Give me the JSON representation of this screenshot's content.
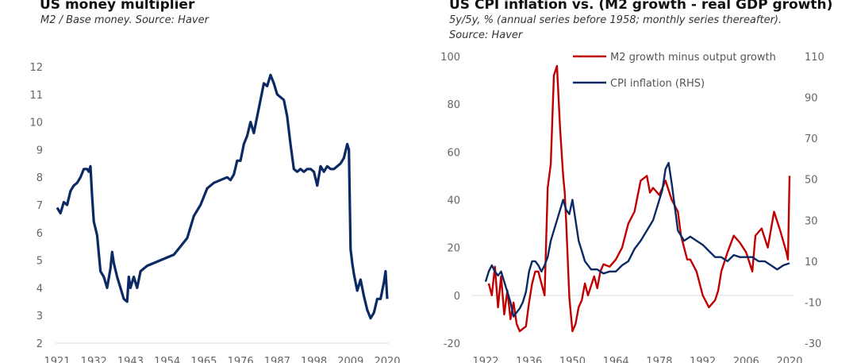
{
  "chart_data": [
    {
      "type": "line",
      "title": "US money multiplier",
      "subtitle": "M2 / Base money. Source: Haver",
      "xlabel": "",
      "ylabel": "",
      "x_ticks": [
        "1921",
        "1932",
        "1943",
        "1954",
        "1965",
        "1976",
        "1987",
        "1998",
        "2009",
        "2020"
      ],
      "y_ticks": [
        "12",
        "11",
        "10",
        "9",
        "8",
        "7",
        "6",
        "5",
        "4",
        "3",
        "2"
      ],
      "xlim": [
        1921,
        2020
      ],
      "ylim": [
        2,
        12
      ],
      "grid": false,
      "series": [
        {
          "name": "US money multiplier",
          "color": "#0b2a64",
          "x": [
            1921,
            1922,
            1923,
            1924,
            1925,
            1926,
            1927,
            1928,
            1929,
            1930,
            1930.5,
            1931,
            1931.5,
            1932,
            1933,
            1934,
            1935,
            1936,
            1937,
            1937.5,
            1938,
            1939,
            1940,
            1941,
            1942,
            1942.5,
            1943,
            1944,
            1945,
            1946,
            1947,
            1948,
            1950,
            1952,
            1954,
            1956,
            1958,
            1960,
            1962,
            1964,
            1965,
            1966,
            1968,
            1970,
            1972,
            1973,
            1974,
            1975,
            1976,
            1977,
            1978,
            1979,
            1980,
            1981,
            1982,
            1983,
            1984,
            1985,
            1986,
            1987,
            1988,
            1989,
            1990,
            1991,
            1992,
            1993,
            1994,
            1995,
            1996,
            1997,
            1998,
            1999,
            2000,
            2001,
            2002,
            2003,
            2004,
            2005,
            2006,
            2007,
            2008,
            2008.5,
            2009,
            2009.5,
            2010,
            2011,
            2012,
            2013,
            2014,
            2015,
            2016,
            2017,
            2018,
            2019,
            2019.5,
            2020
          ],
          "y": [
            6.9,
            6.7,
            7.1,
            7.0,
            7.5,
            7.7,
            7.8,
            8.0,
            8.3,
            8.3,
            8.2,
            8.4,
            7.3,
            6.4,
            5.9,
            4.6,
            4.4,
            4.0,
            4.7,
            5.3,
            4.9,
            4.4,
            4.0,
            3.6,
            3.5,
            4.4,
            4.0,
            4.4,
            4.0,
            4.6,
            4.7,
            4.8,
            4.9,
            5.0,
            5.1,
            5.2,
            5.5,
            5.8,
            6.6,
            7.0,
            7.3,
            7.6,
            7.8,
            7.9,
            8.0,
            7.9,
            8.1,
            8.6,
            8.6,
            9.2,
            9.5,
            10.0,
            9.6,
            10.2,
            10.8,
            11.4,
            11.3,
            11.7,
            11.4,
            11.0,
            10.9,
            10.8,
            10.2,
            9.2,
            8.3,
            8.2,
            8.3,
            8.2,
            8.3,
            8.3,
            8.2,
            7.7,
            8.4,
            8.2,
            8.4,
            8.3,
            8.3,
            8.4,
            8.5,
            8.7,
            9.2,
            9.0,
            5.4,
            4.9,
            4.5,
            3.9,
            4.3,
            3.7,
            3.2,
            2.9,
            3.1,
            3.6,
            3.6,
            4.2,
            4.6,
            3.6
          ]
        }
      ]
    },
    {
      "type": "line",
      "title": "US CPI inflation vs. (M2 growth - real GDP growth)",
      "subtitle": "5y/5y, % (annual series before 1958; monthly series thereafter).",
      "subtitle2": "Source: Haver",
      "xlabel": "",
      "ylabel": "",
      "x_ticks": [
        "1922",
        "1936",
        "1950",
        "1964",
        "1978",
        "1992",
        "2006",
        "2020"
      ],
      "xlim": [
        1922,
        2020
      ],
      "y_ticks_left": [
        "100",
        "80",
        "60",
        "40",
        "20",
        "0",
        "-20"
      ],
      "ylim_left": [
        -20,
        100
      ],
      "y_ticks_right": [
        "110",
        "90",
        "70",
        "50",
        "30",
        "10",
        "-10",
        "-30"
      ],
      "ylim_right": [
        -30,
        110
      ],
      "grid": false,
      "legend_position": "top-right",
      "legend": [
        "M2 growth minus output growth",
        "CPI inflation (RHS)"
      ],
      "series": [
        {
          "name": "M2 growth minus output growth",
          "axis": "left",
          "color": "#c00000",
          "x": [
            1923,
            1924,
            1925,
            1926,
            1927,
            1928,
            1929,
            1930,
            1931,
            1932,
            1933,
            1934,
            1935,
            1936,
            1937,
            1938,
            1939,
            1940,
            1941,
            1942,
            1943,
            1944,
            1945,
            1946,
            1947,
            1947.5,
            1948,
            1949,
            1950,
            1951,
            1952,
            1953,
            1954,
            1955,
            1956,
            1957,
            1958,
            1959,
            1960,
            1962,
            1964,
            1966,
            1968,
            1970,
            1972,
            1974,
            1975,
            1976,
            1978,
            1980,
            1982,
            1984,
            1985,
            1986,
            1987,
            1988,
            1990,
            1992,
            1994,
            1996,
            1997,
            1998,
            2000,
            2002,
            2004,
            2006,
            2008,
            2009,
            2011,
            2013,
            2015,
            2017,
            2019,
            2019.5,
            2020
          ],
          "y": [
            5,
            0,
            12,
            -5,
            8,
            -8,
            2,
            -10,
            -3,
            -12,
            -15,
            -14,
            -13,
            -3,
            5,
            10,
            10,
            5,
            0,
            45,
            55,
            92,
            96,
            70,
            50,
            43,
            30,
            -1,
            -15,
            -12,
            -5,
            -2,
            5,
            0,
            4,
            8,
            3,
            10,
            13,
            12,
            15,
            20,
            30,
            35,
            48,
            50,
            43,
            45,
            42,
            48,
            40,
            35,
            25,
            20,
            15,
            15,
            10,
            0,
            -5,
            -2,
            2,
            10,
            18,
            25,
            22,
            18,
            10,
            25,
            28,
            20,
            35,
            27,
            18,
            15,
            50
          ]
        },
        {
          "name": "CPI inflation (RHS)",
          "axis": "right",
          "color": "#0b2a64",
          "x": [
            1922,
            1923,
            1924,
            1925,
            1926,
            1927,
            1928,
            1929,
            1930,
            1931,
            1932,
            1933,
            1934,
            1935,
            1936,
            1937,
            1938,
            1939,
            1940,
            1941,
            1942,
            1943,
            1944,
            1945,
            1946,
            1947,
            1948,
            1949,
            1950,
            1951,
            1952,
            1953,
            1954,
            1956,
            1958,
            1960,
            1962,
            1964,
            1966,
            1968,
            1970,
            1972,
            1974,
            1976,
            1978,
            1979,
            1980,
            1981,
            1982,
            1984,
            1986,
            1988,
            1990,
            1992,
            1994,
            1996,
            1998,
            2000,
            2002,
            2004,
            2006,
            2008,
            2010,
            2012,
            2014,
            2016,
            2018,
            2020
          ],
          "y": [
            0,
            5,
            8,
            5,
            3,
            5,
            0,
            -5,
            -10,
            -17,
            -15,
            -13,
            -10,
            -5,
            5,
            10,
            10,
            8,
            5,
            8,
            12,
            20,
            25,
            30,
            35,
            40,
            35,
            33,
            40,
            30,
            20,
            15,
            10,
            6,
            6,
            4,
            5,
            5,
            8,
            10,
            16,
            20,
            25,
            30,
            40,
            45,
            55,
            58,
            48,
            25,
            20,
            22,
            20,
            18,
            15,
            12,
            12,
            10,
            13,
            12,
            12,
            12,
            10,
            10,
            8,
            6,
            8,
            9
          ]
        }
      ]
    }
  ]
}
